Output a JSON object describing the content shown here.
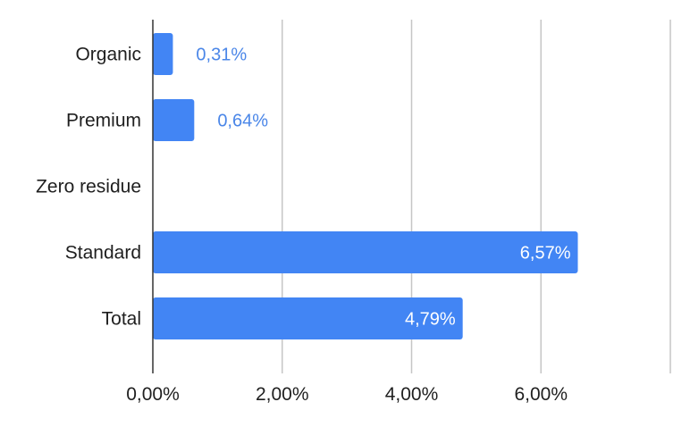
{
  "chart_data": {
    "type": "bar",
    "orientation": "horizontal",
    "categories": [
      "Organic",
      "Premium",
      "Zero residue",
      "Standard",
      "Total"
    ],
    "values": [
      0.31,
      0.64,
      0,
      6.57,
      4.79
    ],
    "data_labels": [
      "0,31%",
      "0,64%",
      "",
      "6,57%",
      "4,79%"
    ],
    "x_ticks": [
      0,
      2,
      4,
      6,
      8
    ],
    "x_tick_labels": [
      "0,00%",
      "2,00%",
      "4,00%",
      "6,00%",
      ""
    ],
    "xlim": [
      0,
      8
    ],
    "grid": true,
    "legend": "none",
    "bar_color": "#4285f4",
    "label_color_outside": "#4a86e8",
    "label_color_inside": "#ffffff"
  }
}
